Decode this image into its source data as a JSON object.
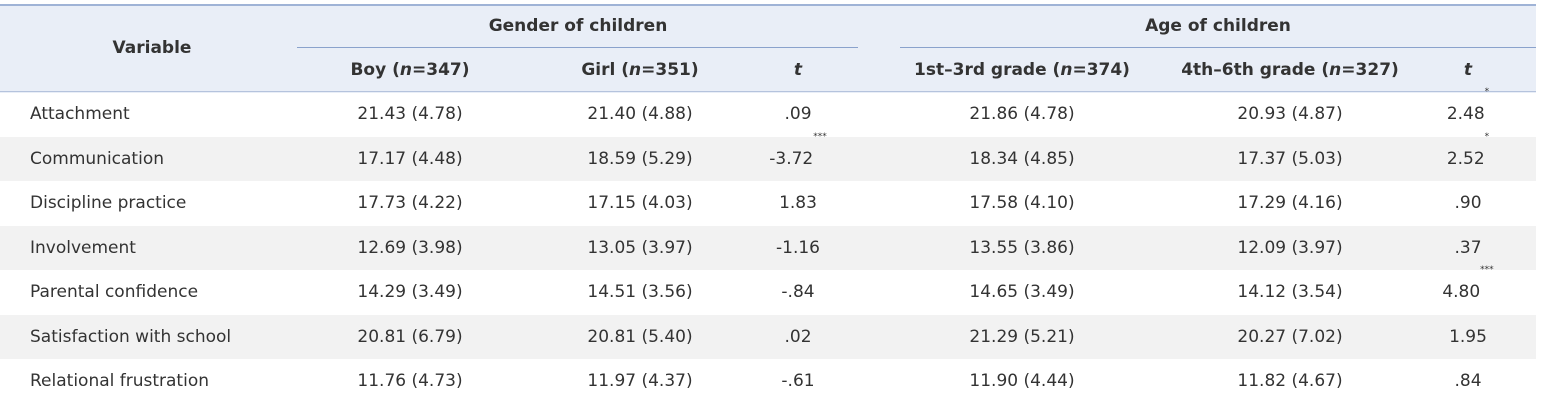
{
  "header": {
    "variable": "Variable",
    "groups": [
      "Gender of children",
      "Age of children"
    ],
    "columns": [
      "Boy (n=347)",
      "Girl (n=351)",
      "t",
      "1st–3rd grade (n=374)",
      "4th–6th grade (n=327)",
      "t"
    ]
  },
  "rows": [
    {
      "label": "Attachment",
      "cells": [
        "21.43 (4.78)",
        "21.40 (4.88)",
        ".09",
        "21.86 (4.78)",
        "20.93 (4.87)",
        {
          "text": "2.48",
          "sup": "*"
        }
      ]
    },
    {
      "label": "Communication",
      "cells": [
        "17.17 (4.48)",
        "18.59 (5.29)",
        {
          "text": "-3.72",
          "sup": "***"
        },
        "18.34 (4.85)",
        "17.37 (5.03)",
        {
          "text": "2.52",
          "sup": "*"
        }
      ]
    },
    {
      "label": "Discipline practice",
      "cells": [
        "17.73 (4.22)",
        "17.15 (4.03)",
        "1.83",
        "17.58 (4.10)",
        "17.29 (4.16)",
        ".90"
      ]
    },
    {
      "label": "Involvement",
      "cells": [
        "12.69 (3.98)",
        "13.05 (3.97)",
        "-1.16",
        "13.55 (3.86)",
        "12.09 (3.97)",
        ".37"
      ]
    },
    {
      "label": "Parental confidence",
      "cells": [
        "14.29 (3.49)",
        "14.51 (3.56)",
        "-.84",
        "14.65 (3.49)",
        "14.12 (3.54)",
        {
          "text": "4.80",
          "sup": "***"
        }
      ]
    },
    {
      "label": "Satisfaction with school",
      "cells": [
        "20.81 (6.79)",
        "20.81 (5.40)",
        ".02",
        "21.29 (5.21)",
        "20.27 (7.02)",
        "1.95"
      ]
    },
    {
      "label": "Relational frustration",
      "cells": [
        "11.76 (4.73)",
        "11.97 (4.37)",
        "-.61",
        "11.90 (4.44)",
        "11.82 (4.67)",
        ".84"
      ]
    }
  ]
}
